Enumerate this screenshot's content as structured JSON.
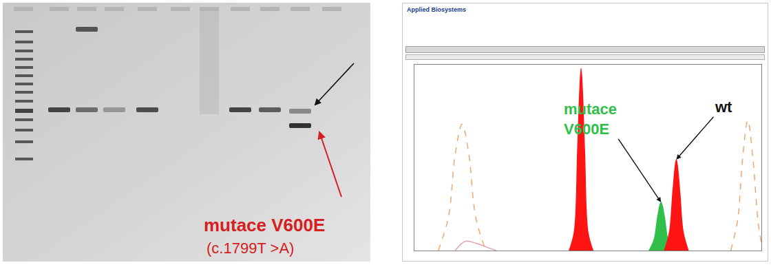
{
  "gel": {
    "label": "mutace V600E",
    "sublabel": "(c.1799T >A)",
    "color": "#d42020"
  },
  "header": "Applied Biosystems",
  "chart_data": {
    "type": "area",
    "tick_labels": false,
    "grid": false,
    "xlim": [
      0,
      102
    ],
    "ylim": [
      0,
      100
    ],
    "series": [
      {
        "type": "line",
        "line_style": "dashed",
        "color": "#f0a060",
        "x": [
          7,
          10,
          12,
          14,
          16,
          18,
          21
        ],
        "values": [
          0,
          18,
          52,
          68,
          52,
          18,
          0
        ]
      },
      {
        "type": "line",
        "line_style": "solid",
        "color": "#e0a0b0",
        "x": [
          12,
          15,
          18,
          21,
          24
        ],
        "values": [
          0,
          5,
          4,
          2,
          0
        ]
      },
      {
        "type": "area",
        "line_style": "solid",
        "color": "#ff1414",
        "x": [
          45.5,
          47,
          48,
          49,
          50,
          51,
          52.5
        ],
        "values": [
          0,
          10,
          55,
          98,
          55,
          10,
          0
        ]
      },
      {
        "type": "area",
        "line_style": "solid",
        "color": "#2fbf4a",
        "annotation": "mutace V600E",
        "x": [
          69,
          70.5,
          71.5,
          72.5,
          73.5,
          74.5,
          76
        ],
        "values": [
          0,
          6,
          18,
          26,
          18,
          6,
          0
        ]
      },
      {
        "type": "area",
        "line_style": "solid",
        "color": "#ff1414",
        "annotation": "wt",
        "x": [
          73.5,
          75,
          76,
          77,
          78,
          79,
          80.5
        ],
        "values": [
          0,
          10,
          32,
          49,
          32,
          10,
          0
        ]
      },
      {
        "type": "line",
        "line_style": "dashed",
        "color": "#f0a060",
        "x": [
          93,
          95,
          96.5,
          98,
          99.5,
          101,
          102
        ],
        "values": [
          0,
          16,
          50,
          70,
          50,
          16,
          4
        ]
      }
    ]
  }
}
